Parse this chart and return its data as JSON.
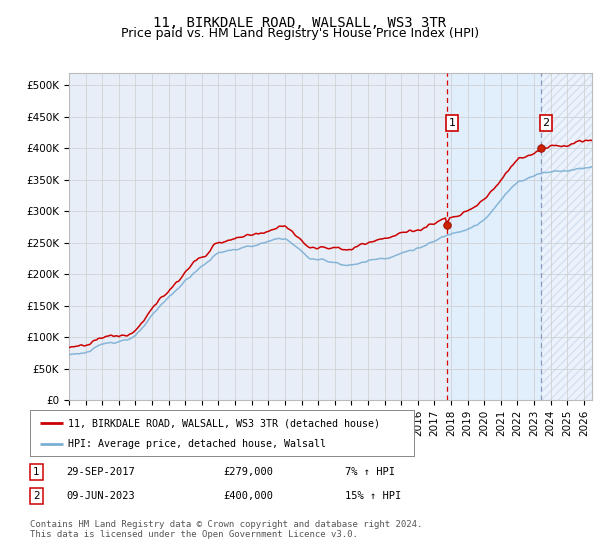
{
  "title": "11, BIRKDALE ROAD, WALSALL, WS3 3TR",
  "subtitle": "Price paid vs. HM Land Registry's House Price Index (HPI)",
  "ylabel_ticks": [
    "£0",
    "£50K",
    "£100K",
    "£150K",
    "£200K",
    "£250K",
    "£300K",
    "£350K",
    "£400K",
    "£450K",
    "£500K"
  ],
  "ylabel_values": [
    0,
    50000,
    100000,
    150000,
    200000,
    250000,
    300000,
    350000,
    400000,
    450000,
    500000
  ],
  "ylim": [
    0,
    520000
  ],
  "xlim_start": 1995.0,
  "xlim_end": 2026.5,
  "hpi_color": "#7bafd4",
  "price_color": "#cc0000",
  "sale1_x": 2017.75,
  "sale1_y": 279000,
  "sale2_x": 2023.42,
  "sale2_y": 400000,
  "legend_line1": "11, BIRKDALE ROAD, WALSALL, WS3 3TR (detached house)",
  "legend_line2": "HPI: Average price, detached house, Walsall",
  "footer": "Contains HM Land Registry data © Crown copyright and database right 2024.\nThis data is licensed under the Open Government Licence v3.0.",
  "grid_color": "#cccccc",
  "plot_bg": "#e8eef8",
  "between_shade": "#dce8f5",
  "hatch_bg": "#dce8f5",
  "title_fontsize": 10,
  "subtitle_fontsize": 9,
  "tick_fontsize": 7.5
}
